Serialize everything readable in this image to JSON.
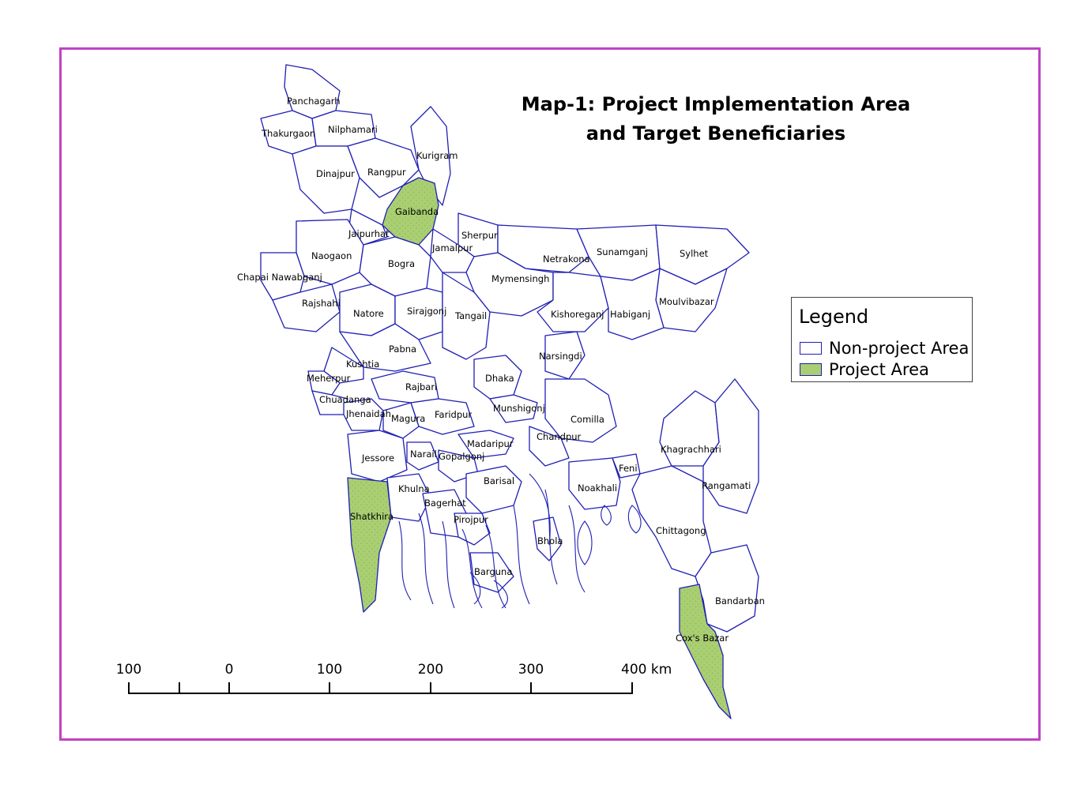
{
  "map": {
    "title_line1": "Map-1: Project Implementation Area",
    "title_line2": "and Target Beneficiaries",
    "colors": {
      "frame": "#c042c6",
      "boundary": "#1f1fb4",
      "project_fill": "#a9cf72",
      "non_project_fill": "#ffffff"
    },
    "districts": [
      {
        "name": "Panchagarh",
        "project": false
      },
      {
        "name": "Thakurgaon",
        "project": false
      },
      {
        "name": "Nilphamari",
        "project": false
      },
      {
        "name": "Kurigram",
        "project": false
      },
      {
        "name": "Dinajpur",
        "project": false
      },
      {
        "name": "Rangpur",
        "project": false
      },
      {
        "name": "Gaibanda",
        "project": true
      },
      {
        "name": "Jaipurhat",
        "project": false
      },
      {
        "name": "Sherpur",
        "project": false
      },
      {
        "name": "Naogaon",
        "project": false
      },
      {
        "name": "Jamalpur",
        "project": false
      },
      {
        "name": "Bogra",
        "project": false
      },
      {
        "name": "Netrakona",
        "project": false
      },
      {
        "name": "Sunamganj",
        "project": false
      },
      {
        "name": "Sylhet",
        "project": false
      },
      {
        "name": "Chapai Nawabganj",
        "project": false
      },
      {
        "name": "Mymensingh",
        "project": false
      },
      {
        "name": "Rajshahi",
        "project": false
      },
      {
        "name": "Moulvibazar",
        "project": false
      },
      {
        "name": "Natore",
        "project": false
      },
      {
        "name": "Sirajgonj",
        "project": false
      },
      {
        "name": "Tangail",
        "project": false
      },
      {
        "name": "Kishoreganj",
        "project": false
      },
      {
        "name": "Habiganj",
        "project": false
      },
      {
        "name": "Pabna",
        "project": false
      },
      {
        "name": "Narsingdi",
        "project": false
      },
      {
        "name": "Kushtia",
        "project": false
      },
      {
        "name": "Meherpur",
        "project": false
      },
      {
        "name": "Dhaka",
        "project": false
      },
      {
        "name": "Rajbari",
        "project": false
      },
      {
        "name": "Chuadanga",
        "project": false
      },
      {
        "name": "Munshigonj",
        "project": false
      },
      {
        "name": "Jhenaidah",
        "project": false
      },
      {
        "name": "Faridpur",
        "project": false
      },
      {
        "name": "Magura",
        "project": false
      },
      {
        "name": "Comilla",
        "project": false
      },
      {
        "name": "Chandpur",
        "project": false
      },
      {
        "name": "Madaripur",
        "project": false
      },
      {
        "name": "Khagrachhari",
        "project": false
      },
      {
        "name": "Jessore",
        "project": false
      },
      {
        "name": "Narail",
        "project": false
      },
      {
        "name": "Gopalgonj",
        "project": false
      },
      {
        "name": "Feni",
        "project": false
      },
      {
        "name": "Barisal",
        "project": false
      },
      {
        "name": "Rangamati",
        "project": false
      },
      {
        "name": "Khulna",
        "project": false
      },
      {
        "name": "Noakhali",
        "project": false
      },
      {
        "name": "Bagerhat",
        "project": false
      },
      {
        "name": "Shatkhira",
        "project": true
      },
      {
        "name": "Pirojpur",
        "project": false
      },
      {
        "name": "Chittagong",
        "project": false
      },
      {
        "name": "Bhola",
        "project": false
      },
      {
        "name": "Barguna",
        "project": false
      },
      {
        "name": "Bandarban",
        "project": false
      },
      {
        "name": "Cox's Bazar",
        "project": true
      }
    ]
  },
  "legend": {
    "title": "Legend",
    "items": [
      {
        "label": "Non-project Area",
        "fill": "#ffffff"
      },
      {
        "label": "Project Area",
        "fill": "#a9cf72"
      }
    ]
  },
  "scale_bar": {
    "ticks": [
      "100",
      "0",
      "100",
      "200",
      "300",
      "400 km"
    ]
  }
}
